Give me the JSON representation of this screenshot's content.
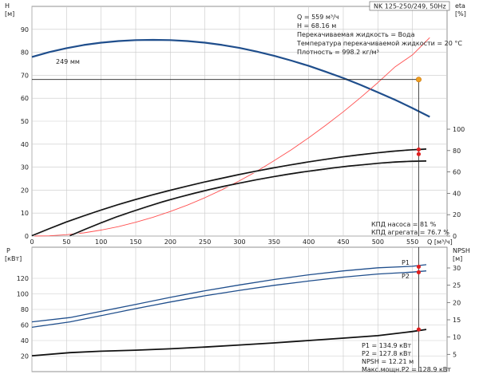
{
  "title_box": "NK 125-250/249, 50Hz",
  "chart_data": [
    {
      "type": "line",
      "x": [
        0,
        25,
        50,
        75,
        100,
        125,
        150,
        175,
        200,
        225,
        250,
        275,
        300,
        325,
        350,
        375,
        400,
        425,
        450,
        475,
        500,
        525,
        550,
        575
      ],
      "xlim": [
        0,
        600
      ],
      "xticks": [
        0,
        50,
        100,
        150,
        200,
        250,
        300,
        350,
        400,
        450,
        500,
        550
      ],
      "xlabel": "Q [м³/ч]",
      "left_axis": {
        "unit_line1": "H",
        "unit_line2": "[м]",
        "ylim": [
          0,
          100
        ],
        "ticks": [
          0,
          10,
          20,
          30,
          40,
          50,
          60,
          70,
          80,
          90
        ]
      },
      "right_axis": {
        "unit_line1": "eta",
        "unit_line2": "[%]",
        "ylim": [
          0,
          100
        ],
        "ticks": [
          0,
          20,
          40,
          60,
          80,
          100
        ]
      },
      "series": [
        {
          "name": "249 мм",
          "axis": "left",
          "color": "#1f4e8c",
          "values": [
            78.0,
            80.1,
            81.8,
            83.2,
            84.2,
            84.9,
            85.3,
            85.4,
            85.3,
            84.9,
            84.2,
            83.2,
            81.9,
            80.3,
            78.5,
            76.4,
            74.1,
            71.5,
            68.8,
            65.8,
            62.6,
            59.3,
            55.7,
            51.9
          ]
        },
        {
          "name": "",
          "axis": "left",
          "color": "#ff5050",
          "values": [
            0,
            0.1,
            0.6,
            1.4,
            2.6,
            4.1,
            6.0,
            8.2,
            10.7,
            13.5,
            16.7,
            20.2,
            24.1,
            28.2,
            32.8,
            37.6,
            42.8,
            48.3,
            54.1,
            60.3,
            66.8,
            73.7,
            78.9,
            86.4
          ]
        },
        {
          "name": "",
          "axis": "right",
          "color": "#111111",
          "x_range": [
            0,
            570
          ],
          "values": [
            0,
            6.6,
            12.8,
            18.5,
            23.9,
            29.0,
            33.7,
            38.1,
            42.3,
            46.3,
            50.1,
            53.6,
            57.0,
            60.2,
            63.3,
            66.1,
            68.8,
            71.3,
            73.6,
            75.6,
            77.4,
            79.0,
            80.3,
            81.2
          ]
        },
        {
          "name": "",
          "axis": "right",
          "color": "#111111",
          "x_range": [
            55,
            570
          ],
          "values": [
            0,
            6.2,
            12.1,
            17.6,
            22.6,
            27.3,
            31.9,
            35.9,
            39.7,
            43.2,
            46.5,
            49.4,
            52.3,
            54.9,
            57.4,
            59.6,
            61.6,
            63.5,
            65.2,
            66.6,
            68.0,
            69.0,
            69.7,
            70.0
          ]
        }
      ],
      "duty_point": {
        "x": 559,
        "y": 68.16
      },
      "eta_points": [
        {
          "x": 559,
          "y": 81
        },
        {
          "x": 559,
          "y": 76.7
        }
      ],
      "info_lines": [
        "Q = 559 м³/ч",
        "H = 68.16 м",
        "Перекачиваемая жидкость = Вода",
        "Температура перекачиваемой жидкости = 20 °C",
        "Плотность = 998.2 кг/м³"
      ],
      "eta_labels": [
        "КПД насоса = 81 %",
        "КПД агрегата = 76.7 %"
      ],
      "grid": true
    },
    {
      "type": "line",
      "xlim": [
        0,
        600
      ],
      "left_axis": {
        "unit_line1": "P",
        "unit_line2": "[кВт]",
        "ylim": [
          0,
          160
        ],
        "ticks": [
          20,
          40,
          60,
          80,
          100,
          120
        ]
      },
      "right_axis": {
        "unit_line1": "NPSH",
        "unit_line2": "[м]",
        "ylim": [
          0,
          36
        ],
        "ticks": [
          5,
          10,
          15,
          20,
          25,
          30
        ]
      },
      "series": [
        {
          "name": "P1",
          "axis": "left",
          "color": "#1f4e8c",
          "x": [
            0,
            55,
            100,
            150,
            200,
            250,
            300,
            350,
            400,
            450,
            500,
            550,
            570
          ],
          "values": [
            64,
            69.5,
            77.5,
            86.5,
            95.5,
            104,
            111.5,
            118.5,
            124.5,
            129.5,
            133.5,
            135.5,
            137.5
          ]
        },
        {
          "name": "P2",
          "axis": "left",
          "color": "#1f4e8c",
          "x": [
            0,
            55,
            100,
            150,
            200,
            250,
            300,
            350,
            400,
            450,
            500,
            550,
            570
          ],
          "values": [
            57,
            64,
            72,
            81,
            89.5,
            97.5,
            104.5,
            111,
            116.5,
            121.5,
            125.5,
            128,
            129.5
          ]
        },
        {
          "name": "",
          "axis": "right",
          "color": "#111111",
          "x": [
            0,
            55,
            100,
            150,
            200,
            250,
            300,
            350,
            400,
            450,
            500,
            550,
            570
          ],
          "values": [
            4.6,
            5.5,
            5.9,
            6.2,
            6.6,
            7.1,
            7.7,
            8.3,
            9.0,
            9.7,
            10.4,
            11.6,
            12.2
          ]
        }
      ],
      "points": [
        {
          "series": 0,
          "x": 559,
          "y": 134.9
        },
        {
          "series": 1,
          "x": 559,
          "y": 127.8
        },
        {
          "series": 2,
          "x": 559,
          "y": 12.21
        }
      ],
      "info_lines": [
        "P1 = 134.9 кВт",
        "P2 = 127.8 кВт",
        "NPSH = 12.21 м",
        "Макс.мощн.P2 = 128.9 кВт"
      ],
      "grid": true
    }
  ]
}
